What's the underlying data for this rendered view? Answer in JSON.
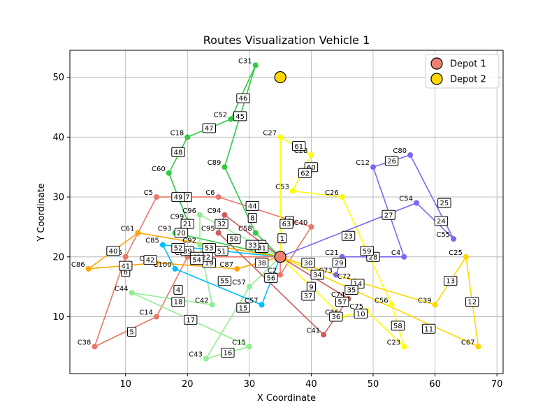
{
  "chart_data": {
    "type": "scatter",
    "title": "Routes Visualization Vehicle 1",
    "xlabel": "X Coordinate",
    "ylabel": "Y Coordinate",
    "xlim": [
      1,
      71
    ],
    "ylim": [
      0.5,
      54.5
    ],
    "xticks": [
      10,
      20,
      30,
      40,
      50,
      60,
      70
    ],
    "yticks": [
      10,
      20,
      30,
      40,
      50
    ],
    "grid": true,
    "legend_position": "top-right",
    "legend": [
      {
        "label": "Depot 1",
        "color": "#f08070"
      },
      {
        "label": "Depot 2",
        "color": "#ffd700"
      }
    ],
    "depots": [
      {
        "name": "Depot 1",
        "x": 35,
        "y": 20,
        "color": "#f08070"
      },
      {
        "name": "Depot 2",
        "x": 35,
        "y": 50,
        "color": "#ffd700"
      }
    ],
    "routes": [
      {
        "color": "#e9776b",
        "stops": [
          {
            "label": "C2",
            "x": 35,
            "y": 17
          },
          {
            "label": "C40",
            "x": 40,
            "y": 25
          },
          {
            "label": "C6",
            "x": 25,
            "y": 30
          },
          {
            "label": "C5",
            "x": 15,
            "y": 30
          },
          {
            "label": "C26",
            "x": 10,
            "y": 20
          },
          {
            "label": "C38",
            "x": 5,
            "y": 5
          },
          {
            "label": "C14",
            "x": 15,
            "y": 10
          },
          {
            "label": "C3",
            "x": 20,
            "y": 20
          }
        ]
      },
      {
        "color": "#2ecc40",
        "stops": [
          {
            "label": "C58",
            "x": 31,
            "y": 24
          },
          {
            "label": "C89",
            "x": 26,
            "y": 35
          },
          {
            "label": "C31",
            "x": 31,
            "y": 52
          },
          {
            "label": "C52",
            "x": 27,
            "y": 43
          },
          {
            "label": "C18",
            "x": 20,
            "y": 40
          },
          {
            "label": "C60",
            "x": 17,
            "y": 34
          },
          {
            "label": "C99",
            "x": 20,
            "y": 26
          },
          {
            "label": "C93",
            "x": 18,
            "y": 24
          }
        ]
      },
      {
        "color": "#90ee90",
        "stops": [
          {
            "label": "C96",
            "x": 22,
            "y": 27
          },
          {
            "label": "C92",
            "x": 22,
            "y": 22
          },
          {
            "label": "C42",
            "x": 24,
            "y": 12
          },
          {
            "label": "C44",
            "x": 11,
            "y": 14
          },
          {
            "label": "C15",
            "x": 30,
            "y": 5
          },
          {
            "label": "C43",
            "x": 23,
            "y": 3
          },
          {
            "label": "C57",
            "x": 30,
            "y": 15
          }
        ]
      },
      {
        "color": "#cd5c5c",
        "stops": [
          {
            "label": "C94",
            "x": 26,
            "y": 27
          },
          {
            "label": "C95",
            "x": 25,
            "y": 24
          },
          {
            "label": "C41",
            "x": 42,
            "y": 7
          },
          {
            "label": "C74",
            "x": 46,
            "y": 13
          }
        ]
      },
      {
        "color": "#00bfff",
        "stops": [
          {
            "label": "C85",
            "x": 16,
            "y": 22
          },
          {
            "label": "C100",
            "x": 18,
            "y": 18
          },
          {
            "label": "C57",
            "x": 32,
            "y": 12
          }
        ]
      },
      {
        "color": "#ffa500",
        "stops": [
          {
            "label": "C61",
            "x": 12,
            "y": 24
          },
          {
            "label": "C86",
            "x": 4,
            "y": 18
          },
          {
            "label": "C91",
            "x": 15,
            "y": 19
          },
          {
            "label": "C87",
            "x": 28,
            "y": 18
          }
        ]
      },
      {
        "color": "#ffff00",
        "stops": [
          {
            "label": "C27",
            "x": 35,
            "y": 40
          },
          {
            "label": "C28",
            "x": 40,
            "y": 37
          },
          {
            "label": "C53",
            "x": 37,
            "y": 31
          },
          {
            "label": "C26",
            "x": 45,
            "y": 30
          },
          {
            "label": "C56",
            "x": 53,
            "y": 12
          },
          {
            "label": "C23",
            "x": 55,
            "y": 5
          },
          {
            "label": "C75",
            "x": 49,
            "y": 11
          },
          {
            "label": "C36",
            "x": 45,
            "y": 10
          }
        ]
      },
      {
        "color": "#7b68ee",
        "stops": [
          {
            "label": "C54",
            "x": 57,
            "y": 29
          },
          {
            "label": "C55",
            "x": 63,
            "y": 23
          },
          {
            "label": "C80",
            "x": 56,
            "y": 37
          },
          {
            "label": "C12",
            "x": 50,
            "y": 35
          },
          {
            "label": "C4",
            "x": 55,
            "y": 20
          },
          {
            "label": "C21",
            "x": 45,
            "y": 20
          },
          {
            "label": "C73",
            "x": 44,
            "y": 17
          }
        ]
      },
      {
        "color": "#ffd700",
        "stops": [
          {
            "label": "C72",
            "x": 47,
            "y": 16
          },
          {
            "label": "C39",
            "x": 60,
            "y": 12
          },
          {
            "label": "C25",
            "x": 65,
            "y": 20
          },
          {
            "label": "C67",
            "x": 67,
            "y": 5
          }
        ]
      }
    ],
    "edge_labels": [
      {
        "text": "1",
        "x": 35.3,
        "y": 23.1
      },
      {
        "text": "2",
        "x": 36.5,
        "y": 26.0
      },
      {
        "text": "3",
        "x": 32.0,
        "y": 22.0
      },
      {
        "text": "4",
        "x": 18.5,
        "y": 14.5
      },
      {
        "text": "5",
        "x": 11.0,
        "y": 7.5
      },
      {
        "text": "6",
        "x": 10.0,
        "y": 17.5
      },
      {
        "text": "7",
        "x": 20.0,
        "y": 30.0
      },
      {
        "text": "8",
        "x": 30.5,
        "y": 26.5
      },
      {
        "text": "9",
        "x": 40.0,
        "y": 15.0
      },
      {
        "text": "10",
        "x": 48.0,
        "y": 10.5
      },
      {
        "text": "11",
        "x": 59.0,
        "y": 8.0
      },
      {
        "text": "12",
        "x": 66.0,
        "y": 12.5
      },
      {
        "text": "13",
        "x": 62.5,
        "y": 16.0
      },
      {
        "text": "14",
        "x": 47.5,
        "y": 15.5
      },
      {
        "text": "15",
        "x": 29.0,
        "y": 11.5
      },
      {
        "text": "16",
        "x": 26.5,
        "y": 4.0
      },
      {
        "text": "17",
        "x": 20.5,
        "y": 9.5
      },
      {
        "text": "18",
        "x": 18.5,
        "y": 12.5
      },
      {
        "text": "19",
        "x": 23.5,
        "y": 19.0
      },
      {
        "text": "20",
        "x": 19.0,
        "y": 24.0
      },
      {
        "text": "21",
        "x": 20.0,
        "y": 25.5
      },
      {
        "text": "22",
        "x": 23.0,
        "y": 20.0
      },
      {
        "text": "23",
        "x": 46.0,
        "y": 23.5
      },
      {
        "text": "24",
        "x": 61.0,
        "y": 26.0
      },
      {
        "text": "25",
        "x": 61.5,
        "y": 29.0
      },
      {
        "text": "26",
        "x": 53.0,
        "y": 36.0
      },
      {
        "text": "27",
        "x": 52.5,
        "y": 27.0
      },
      {
        "text": "28",
        "x": 50.0,
        "y": 20.0
      },
      {
        "text": "29",
        "x": 44.5,
        "y": 19.0
      },
      {
        "text": "30",
        "x": 39.5,
        "y": 19.0
      },
      {
        "text": "31",
        "x": 32.0,
        "y": 21.5
      },
      {
        "text": "32",
        "x": 25.5,
        "y": 25.5
      },
      {
        "text": "33",
        "x": 30.5,
        "y": 22.0
      },
      {
        "text": "34",
        "x": 41.0,
        "y": 17.0
      },
      {
        "text": "35",
        "x": 46.5,
        "y": 14.5
      },
      {
        "text": "36",
        "x": 44.0,
        "y": 10.0
      },
      {
        "text": "37",
        "x": 39.5,
        "y": 13.5
      },
      {
        "text": "38",
        "x": 32.0,
        "y": 19.0
      },
      {
        "text": "39",
        "x": 20.0,
        "y": 21.0
      },
      {
        "text": "40",
        "x": 8.0,
        "y": 21.0
      },
      {
        "text": "41",
        "x": 10.0,
        "y": 18.5
      },
      {
        "text": "42",
        "x": 14.0,
        "y": 19.5
      },
      {
        "text": "43",
        "x": 21.5,
        "y": 20.0
      },
      {
        "text": "44",
        "x": 30.5,
        "y": 28.5
      },
      {
        "text": "45",
        "x": 28.5,
        "y": 43.5
      },
      {
        "text": "46",
        "x": 29.0,
        "y": 46.5
      },
      {
        "text": "47",
        "x": 23.5,
        "y": 41.5
      },
      {
        "text": "48",
        "x": 18.5,
        "y": 37.5
      },
      {
        "text": "49",
        "x": 18.5,
        "y": 30.0
      },
      {
        "text": "50",
        "x": 27.5,
        "y": 23.0
      },
      {
        "text": "51",
        "x": 25.5,
        "y": 21.0
      },
      {
        "text": "52",
        "x": 18.5,
        "y": 21.5
      },
      {
        "text": "53",
        "x": 23.5,
        "y": 21.5
      },
      {
        "text": "54",
        "x": 21.5,
        "y": 19.5
      },
      {
        "text": "55",
        "x": 26.0,
        "y": 16.0
      },
      {
        "text": "56",
        "x": 33.5,
        "y": 16.5
      },
      {
        "text": "57",
        "x": 45.0,
        "y": 12.5
      },
      {
        "text": "58",
        "x": 54.0,
        "y": 8.5
      },
      {
        "text": "59",
        "x": 49.0,
        "y": 21.0
      },
      {
        "text": "60",
        "x": 40.0,
        "y": 35.0
      },
      {
        "text": "61",
        "x": 38.0,
        "y": 38.5
      },
      {
        "text": "62",
        "x": 39.0,
        "y": 34.0
      },
      {
        "text": "63",
        "x": 36.0,
        "y": 25.5
      }
    ]
  }
}
